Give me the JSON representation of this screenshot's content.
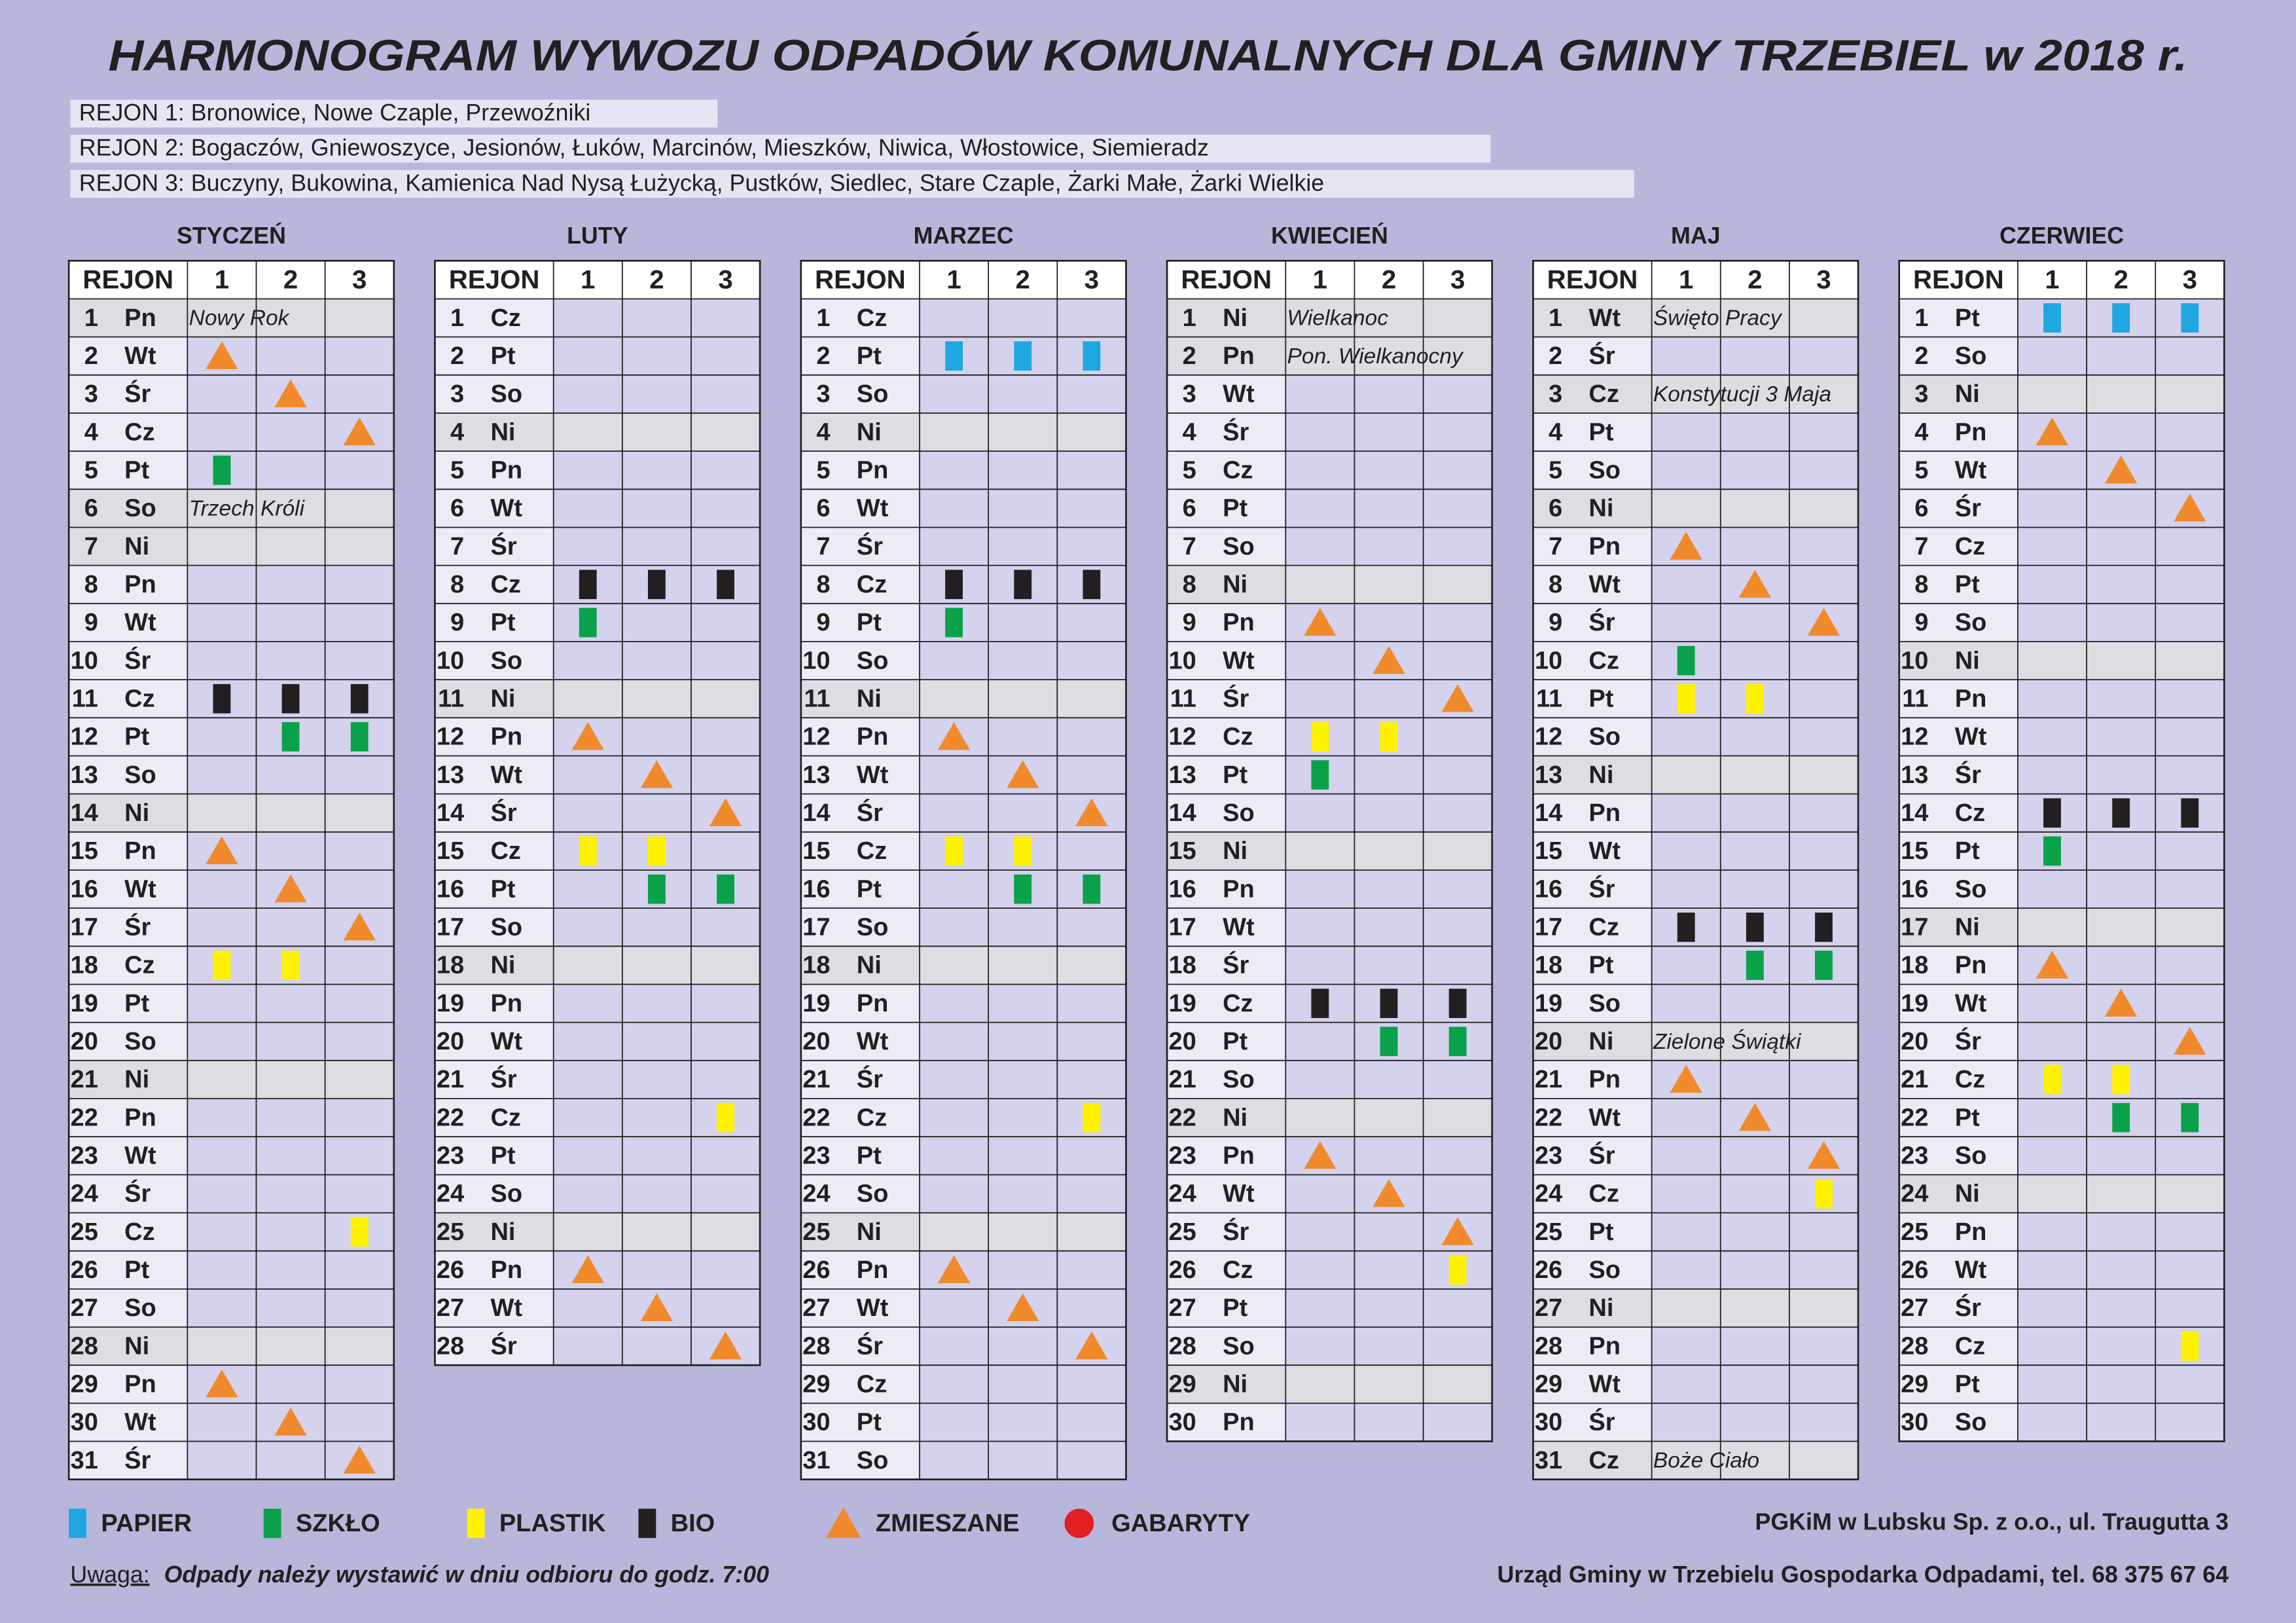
{
  "header": {
    "title": "HARMONOGRAM WYWOZU ODPADÓW KOMUNALNYCH DLA GMINY TRZEBIEL w 2018 r.",
    "regions": [
      "REJON 1: Bronowice, Nowe Czaple, Przewoźniki",
      "REJON 2: Bogaczów, Gniewoszyce, Jesionów, Łuków, Marcinów, Mieszków, Niwica, Włostowice, Siemieradz",
      "REJON 3: Buczyny, Bukowina, Kamienica Nad Nysą Łużycką, Pustków, Siedlec,  Stare Czaple, Żarki Małe, Żarki Wielkie"
    ]
  },
  "table_header": [
    "REJON",
    "1",
    "2",
    "3"
  ],
  "legend": [
    {
      "label": "PAPIER",
      "color": "#1ea7e1",
      "shape": "rect"
    },
    {
      "label": "SZKŁO",
      "color": "#0aa14b",
      "shape": "rect"
    },
    {
      "label": "PLASTIK",
      "color": "#fff200",
      "shape": "rect"
    },
    {
      "label": "BIO",
      "color": "#231f20",
      "shape": "rect"
    },
    {
      "label": "ZMIESZANE",
      "color": "#f08a2c",
      "shape": "triangle"
    },
    {
      "label": "GABARYTY",
      "color": "#e31e24",
      "shape": "circle"
    }
  ],
  "months": [
    {
      "name": "STYCZEŃ",
      "rows": [
        {
          "d": 1,
          "wd": "Pn",
          "note": "Nowy Rok",
          "shade": true
        },
        {
          "d": 2,
          "wd": "Wt",
          "w": [
            4,
            null,
            null
          ]
        },
        {
          "d": 3,
          "wd": "Śr",
          "w": [
            null,
            4,
            null
          ]
        },
        {
          "d": 4,
          "wd": "Cz",
          "w": [
            null,
            null,
            4
          ]
        },
        {
          "d": 5,
          "wd": "Pt",
          "w": [
            1,
            null,
            null
          ]
        },
        {
          "d": 6,
          "wd": "So",
          "note": "Trzech Króli",
          "shade": true
        },
        {
          "d": 7,
          "wd": "Ni",
          "shade": true
        },
        {
          "d": 8,
          "wd": "Pn"
        },
        {
          "d": 9,
          "wd": "Wt"
        },
        {
          "d": 10,
          "wd": "Śr"
        },
        {
          "d": 11,
          "wd": "Cz",
          "w": [
            3,
            3,
            3
          ]
        },
        {
          "d": 12,
          "wd": "Pt",
          "w": [
            null,
            1,
            1
          ]
        },
        {
          "d": 13,
          "wd": "So"
        },
        {
          "d": 14,
          "wd": "Ni",
          "shade": true
        },
        {
          "d": 15,
          "wd": "Pn",
          "w": [
            4,
            null,
            null
          ]
        },
        {
          "d": 16,
          "wd": "Wt",
          "w": [
            null,
            4,
            null
          ]
        },
        {
          "d": 17,
          "wd": "Śr",
          "w": [
            null,
            null,
            4
          ]
        },
        {
          "d": 18,
          "wd": "Cz",
          "w": [
            2,
            2,
            null
          ]
        },
        {
          "d": 19,
          "wd": "Pt"
        },
        {
          "d": 20,
          "wd": "So"
        },
        {
          "d": 21,
          "wd": "Ni",
          "shade": true
        },
        {
          "d": 22,
          "wd": "Pn"
        },
        {
          "d": 23,
          "wd": "Wt"
        },
        {
          "d": 24,
          "wd": "Śr"
        },
        {
          "d": 25,
          "wd": "Cz",
          "w": [
            null,
            null,
            2
          ]
        },
        {
          "d": 26,
          "wd": "Pt"
        },
        {
          "d": 27,
          "wd": "So"
        },
        {
          "d": 28,
          "wd": "Ni",
          "shade": true
        },
        {
          "d": 29,
          "wd": "Pn",
          "w": [
            4,
            null,
            null
          ]
        },
        {
          "d": 30,
          "wd": "Wt",
          "w": [
            null,
            4,
            null
          ]
        },
        {
          "d": 31,
          "wd": "Śr",
          "w": [
            null,
            null,
            4
          ]
        }
      ]
    },
    {
      "name": "LUTY",
      "rows": [
        {
          "d": 1,
          "wd": "Cz"
        },
        {
          "d": 2,
          "wd": "Pt"
        },
        {
          "d": 3,
          "wd": "So"
        },
        {
          "d": 4,
          "wd": "Ni",
          "shade": true
        },
        {
          "d": 5,
          "wd": "Pn"
        },
        {
          "d": 6,
          "wd": "Wt"
        },
        {
          "d": 7,
          "wd": "Śr"
        },
        {
          "d": 8,
          "wd": "Cz",
          "w": [
            3,
            3,
            3
          ]
        },
        {
          "d": 9,
          "wd": "Pt",
          "w": [
            1,
            null,
            null
          ]
        },
        {
          "d": 10,
          "wd": "So"
        },
        {
          "d": 11,
          "wd": "Ni",
          "shade": true
        },
        {
          "d": 12,
          "wd": "Pn",
          "w": [
            4,
            null,
            null
          ]
        },
        {
          "d": 13,
          "wd": "Wt",
          "w": [
            null,
            4,
            null
          ]
        },
        {
          "d": 14,
          "wd": "Śr",
          "w": [
            null,
            null,
            4
          ]
        },
        {
          "d": 15,
          "wd": "Cz",
          "w": [
            2,
            2,
            null
          ]
        },
        {
          "d": 16,
          "wd": "Pt",
          "w": [
            null,
            1,
            1
          ]
        },
        {
          "d": 17,
          "wd": "So"
        },
        {
          "d": 18,
          "wd": "Ni",
          "shade": true
        },
        {
          "d": 19,
          "wd": "Pn"
        },
        {
          "d": 20,
          "wd": "Wt"
        },
        {
          "d": 21,
          "wd": "Śr"
        },
        {
          "d": 22,
          "wd": "Cz",
          "w": [
            null,
            null,
            2
          ]
        },
        {
          "d": 23,
          "wd": "Pt"
        },
        {
          "d": 24,
          "wd": "So"
        },
        {
          "d": 25,
          "wd": "Ni",
          "shade": true
        },
        {
          "d": 26,
          "wd": "Pn",
          "w": [
            4,
            null,
            null
          ]
        },
        {
          "d": 27,
          "wd": "Wt",
          "w": [
            null,
            4,
            null
          ]
        },
        {
          "d": 28,
          "wd": "Śr",
          "w": [
            null,
            null,
            4
          ]
        }
      ]
    },
    {
      "name": "MARZEC",
      "rows": [
        {
          "d": 1,
          "wd": "Cz"
        },
        {
          "d": 2,
          "wd": "Pt",
          "w": [
            0,
            0,
            0
          ]
        },
        {
          "d": 3,
          "wd": "So"
        },
        {
          "d": 4,
          "wd": "Ni",
          "shade": true
        },
        {
          "d": 5,
          "wd": "Pn"
        },
        {
          "d": 6,
          "wd": "Wt"
        },
        {
          "d": 7,
          "wd": "Śr"
        },
        {
          "d": 8,
          "wd": "Cz",
          "w": [
            3,
            3,
            3
          ]
        },
        {
          "d": 9,
          "wd": "Pt",
          "w": [
            1,
            null,
            null
          ]
        },
        {
          "d": 10,
          "wd": "So"
        },
        {
          "d": 11,
          "wd": "Ni",
          "shade": true
        },
        {
          "d": 12,
          "wd": "Pn",
          "w": [
            4,
            null,
            null
          ]
        },
        {
          "d": 13,
          "wd": "Wt",
          "w": [
            null,
            4,
            null
          ]
        },
        {
          "d": 14,
          "wd": "Śr",
          "w": [
            null,
            null,
            4
          ]
        },
        {
          "d": 15,
          "wd": "Cz",
          "w": [
            2,
            2,
            null
          ]
        },
        {
          "d": 16,
          "wd": "Pt",
          "w": [
            null,
            1,
            1
          ]
        },
        {
          "d": 17,
          "wd": "So"
        },
        {
          "d": 18,
          "wd": "Ni",
          "shade": true
        },
        {
          "d": 19,
          "wd": "Pn"
        },
        {
          "d": 20,
          "wd": "Wt"
        },
        {
          "d": 21,
          "wd": "Śr"
        },
        {
          "d": 22,
          "wd": "Cz",
          "w": [
            null,
            null,
            2
          ]
        },
        {
          "d": 23,
          "wd": "Pt"
        },
        {
          "d": 24,
          "wd": "So"
        },
        {
          "d": 25,
          "wd": "Ni",
          "shade": true
        },
        {
          "d": 26,
          "wd": "Pn",
          "w": [
            4,
            null,
            null
          ]
        },
        {
          "d": 27,
          "wd": "Wt",
          "w": [
            null,
            4,
            null
          ]
        },
        {
          "d": 28,
          "wd": "Śr",
          "w": [
            null,
            null,
            4
          ]
        },
        {
          "d": 29,
          "wd": "Cz"
        },
        {
          "d": 30,
          "wd": "Pt"
        },
        {
          "d": 31,
          "wd": "So"
        }
      ]
    },
    {
      "name": "KWIECIEŃ",
      "rows": [
        {
          "d": 1,
          "wd": "Ni",
          "note": "Wielkanoc",
          "shade": true
        },
        {
          "d": 2,
          "wd": "Pn",
          "note": "Pon. Wielkanocny",
          "shade": true
        },
        {
          "d": 3,
          "wd": "Wt"
        },
        {
          "d": 4,
          "wd": "Śr"
        },
        {
          "d": 5,
          "wd": "Cz"
        },
        {
          "d": 6,
          "wd": "Pt"
        },
        {
          "d": 7,
          "wd": "So"
        },
        {
          "d": 8,
          "wd": "Ni",
          "shade": true
        },
        {
          "d": 9,
          "wd": "Pn",
          "w": [
            4,
            null,
            null
          ]
        },
        {
          "d": 10,
          "wd": "Wt",
          "w": [
            null,
            4,
            null
          ]
        },
        {
          "d": 11,
          "wd": "Śr",
          "w": [
            null,
            null,
            4
          ]
        },
        {
          "d": 12,
          "wd": "Cz",
          "w": [
            2,
            2,
            null
          ]
        },
        {
          "d": 13,
          "wd": "Pt",
          "w": [
            1,
            null,
            null
          ]
        },
        {
          "d": 14,
          "wd": "So"
        },
        {
          "d": 15,
          "wd": "Ni",
          "shade": true
        },
        {
          "d": 16,
          "wd": "Pn"
        },
        {
          "d": 17,
          "wd": "Wt"
        },
        {
          "d": 18,
          "wd": "Śr"
        },
        {
          "d": 19,
          "wd": "Cz",
          "w": [
            3,
            3,
            3
          ]
        },
        {
          "d": 20,
          "wd": "Pt",
          "w": [
            null,
            1,
            1
          ]
        },
        {
          "d": 21,
          "wd": "So"
        },
        {
          "d": 22,
          "wd": "Ni",
          "shade": true
        },
        {
          "d": 23,
          "wd": "Pn",
          "w": [
            4,
            null,
            null
          ]
        },
        {
          "d": 24,
          "wd": "Wt",
          "w": [
            null,
            4,
            null
          ]
        },
        {
          "d": 25,
          "wd": "Śr",
          "w": [
            null,
            null,
            4
          ]
        },
        {
          "d": 26,
          "wd": "Cz",
          "w": [
            null,
            null,
            2
          ]
        },
        {
          "d": 27,
          "wd": "Pt"
        },
        {
          "d": 28,
          "wd": "So"
        },
        {
          "d": 29,
          "wd": "Ni",
          "shade": true
        },
        {
          "d": 30,
          "wd": "Pn"
        }
      ]
    },
    {
      "name": "MAJ",
      "rows": [
        {
          "d": 1,
          "wd": "Wt",
          "note": "Święto Pracy",
          "shade": true
        },
        {
          "d": 2,
          "wd": "Śr"
        },
        {
          "d": 3,
          "wd": "Cz",
          "note": "Konstytucji 3 Maja",
          "shade": true
        },
        {
          "d": 4,
          "wd": "Pt"
        },
        {
          "d": 5,
          "wd": "So"
        },
        {
          "d": 6,
          "wd": "Ni",
          "shade": true
        },
        {
          "d": 7,
          "wd": "Pn",
          "w": [
            4,
            null,
            null
          ]
        },
        {
          "d": 8,
          "wd": "Wt",
          "w": [
            null,
            4,
            null
          ]
        },
        {
          "d": 9,
          "wd": "Śr",
          "w": [
            null,
            null,
            4
          ]
        },
        {
          "d": 10,
          "wd": "Cz",
          "w": [
            1,
            null,
            null
          ]
        },
        {
          "d": 11,
          "wd": "Pt",
          "w": [
            2,
            2,
            null
          ]
        },
        {
          "d": 12,
          "wd": "So"
        },
        {
          "d": 13,
          "wd": "Ni",
          "shade": true
        },
        {
          "d": 14,
          "wd": "Pn"
        },
        {
          "d": 15,
          "wd": "Wt"
        },
        {
          "d": 16,
          "wd": "Śr"
        },
        {
          "d": 17,
          "wd": "Cz",
          "w": [
            3,
            3,
            3
          ]
        },
        {
          "d": 18,
          "wd": "Pt",
          "w": [
            null,
            1,
            1
          ]
        },
        {
          "d": 19,
          "wd": "So"
        },
        {
          "d": 20,
          "wd": "Ni",
          "note": "Zielone Świątki",
          "shade": true
        },
        {
          "d": 21,
          "wd": "Pn",
          "w": [
            4,
            null,
            null
          ]
        },
        {
          "d": 22,
          "wd": "Wt",
          "w": [
            null,
            4,
            null
          ]
        },
        {
          "d": 23,
          "wd": "Śr",
          "w": [
            null,
            null,
            4
          ]
        },
        {
          "d": 24,
          "wd": "Cz",
          "w": [
            null,
            null,
            2
          ]
        },
        {
          "d": 25,
          "wd": "Pt"
        },
        {
          "d": 26,
          "wd": "So"
        },
        {
          "d": 27,
          "wd": "Ni",
          "shade": true
        },
        {
          "d": 28,
          "wd": "Pn"
        },
        {
          "d": 29,
          "wd": "Wt"
        },
        {
          "d": 30,
          "wd": "Śr"
        },
        {
          "d": 31,
          "wd": "Cz",
          "note": "Boże Ciało",
          "shade": true
        }
      ]
    },
    {
      "name": "CZERWIEC",
      "rows": [
        {
          "d": 1,
          "wd": "Pt",
          "w": [
            0,
            0,
            0
          ]
        },
        {
          "d": 2,
          "wd": "So"
        },
        {
          "d": 3,
          "wd": "Ni",
          "shade": true
        },
        {
          "d": 4,
          "wd": "Pn",
          "w": [
            4,
            null,
            null
          ]
        },
        {
          "d": 5,
          "wd": "Wt",
          "w": [
            null,
            4,
            null
          ]
        },
        {
          "d": 6,
          "wd": "Śr",
          "w": [
            null,
            null,
            4
          ]
        },
        {
          "d": 7,
          "wd": "Cz"
        },
        {
          "d": 8,
          "wd": "Pt"
        },
        {
          "d": 9,
          "wd": "So"
        },
        {
          "d": 10,
          "wd": "Ni",
          "shade": true
        },
        {
          "d": 11,
          "wd": "Pn"
        },
        {
          "d": 12,
          "wd": "Wt"
        },
        {
          "d": 13,
          "wd": "Śr"
        },
        {
          "d": 14,
          "wd": "Cz",
          "w": [
            3,
            3,
            3
          ]
        },
        {
          "d": 15,
          "wd": "Pt",
          "w": [
            1,
            null,
            null
          ]
        },
        {
          "d": 16,
          "wd": "So"
        },
        {
          "d": 17,
          "wd": "Ni",
          "shade": true
        },
        {
          "d": 18,
          "wd": "Pn",
          "w": [
            4,
            null,
            null
          ]
        },
        {
          "d": 19,
          "wd": "Wt",
          "w": [
            null,
            4,
            null
          ]
        },
        {
          "d": 20,
          "wd": "Śr",
          "w": [
            null,
            null,
            4
          ]
        },
        {
          "d": 21,
          "wd": "Cz",
          "w": [
            2,
            2,
            null
          ]
        },
        {
          "d": 22,
          "wd": "Pt",
          "w": [
            null,
            1,
            1
          ]
        },
        {
          "d": 23,
          "wd": "So"
        },
        {
          "d": 24,
          "wd": "Ni",
          "shade": true
        },
        {
          "d": 25,
          "wd": "Pn"
        },
        {
          "d": 26,
          "wd": "Wt"
        },
        {
          "d": 27,
          "wd": "Śr"
        },
        {
          "d": 28,
          "wd": "Cz",
          "w": [
            null,
            null,
            2
          ]
        },
        {
          "d": 29,
          "wd": "Pt"
        },
        {
          "d": 30,
          "wd": "So"
        }
      ]
    }
  ],
  "footer": {
    "note_label": "Uwaga:",
    "note": "Odpady należy wystawić w dniu odbioru do godz. 7:00",
    "company": "PGKiM w Lubsku Sp. z o.o., ul. Traugutta 3",
    "office": "Urząd Gminy w Trzebielu Gospodarka Odpadami, tel. 68 375 67 64"
  }
}
